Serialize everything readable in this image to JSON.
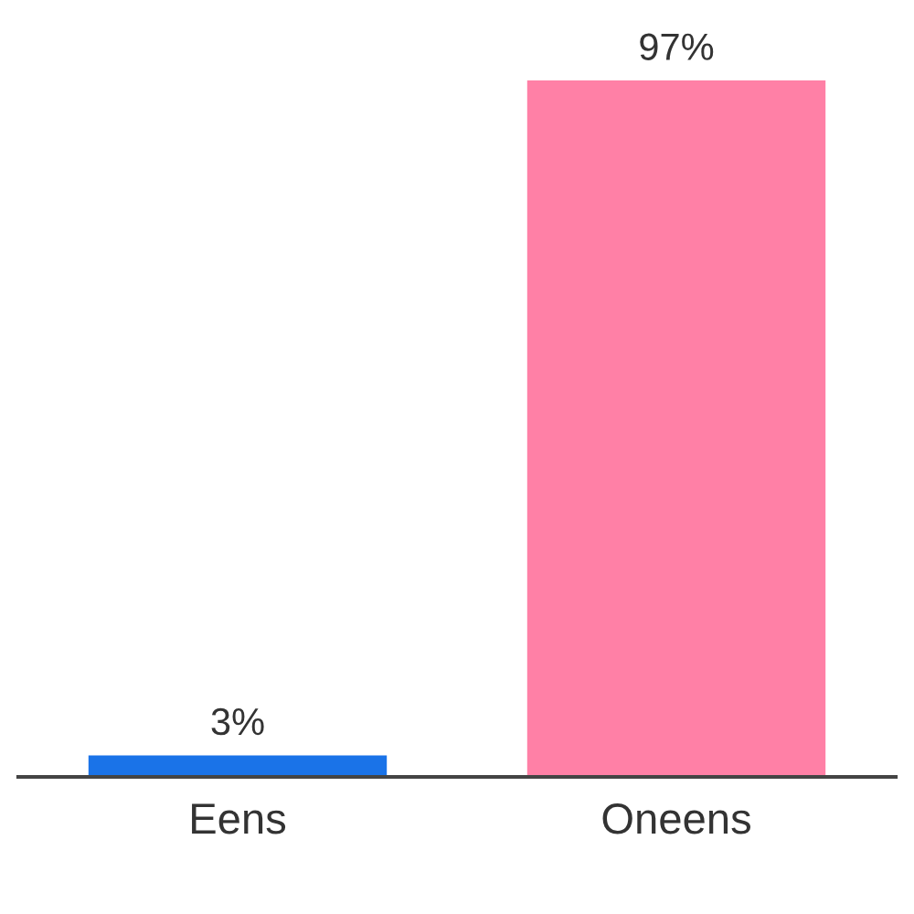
{
  "chart_data": {
    "type": "bar",
    "categories": [
      "Eens",
      "Oneens"
    ],
    "values": [
      3,
      97
    ],
    "colors": [
      "#1a73e8",
      "#ff80a6"
    ],
    "value_labels": [
      "3%",
      "97%"
    ],
    "grid": false,
    "legend": false
  }
}
